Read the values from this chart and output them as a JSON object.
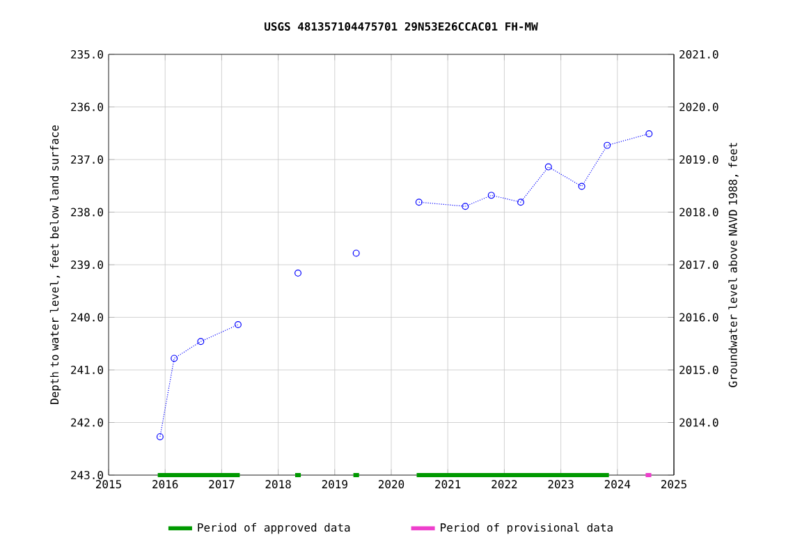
{
  "chart_data": {
    "type": "line",
    "title": "USGS 481357104475701 29N53E26CCAC01 FH-MW",
    "ylabel": "Depth to water level, feet below land surface",
    "y2label": "Groundwater level above NAVD 1988, feet",
    "series": [
      {
        "color": "#0000ff",
        "x": [
          2015.91,
          2016.16,
          2016.63,
          2017.29
        ],
        "values": [
          242.27,
          240.78,
          240.46,
          240.14
        ]
      },
      {
        "color": "#0000ff",
        "x": [
          2018.35
        ],
        "values": [
          239.16
        ]
      },
      {
        "color": "#0000ff",
        "x": [
          2019.38
        ],
        "values": [
          238.78
        ]
      },
      {
        "color": "#0000ff",
        "x": [
          2020.49,
          2021.31,
          2021.77,
          2022.29,
          2022.78,
          2023.37,
          2023.82,
          2024.56
        ],
        "values": [
          237.81,
          237.89,
          237.68,
          237.81,
          237.14,
          237.51,
          236.73,
          236.51
        ]
      },
      {
        "name": "Period of approved data",
        "color": "#009900",
        "marker": "none",
        "line_style": "solid",
        "x": [
          2015.87,
          2017.32
        ],
        "values": [
          243,
          243
        ]
      },
      {
        "color": "#009900",
        "marker": "none",
        "line_style": "solid",
        "x": [
          2018.3,
          2018.4
        ],
        "values": [
          243,
          243
        ]
      },
      {
        "color": "#009900",
        "marker": "none",
        "line_style": "solid",
        "x": [
          2019.33,
          2019.43
        ],
        "values": [
          243,
          243
        ]
      },
      {
        "color": "#009900",
        "marker": "none",
        "line_style": "solid",
        "x": [
          2020.45,
          2023.85
        ],
        "values": [
          243,
          243
        ]
      },
      {
        "name": "Period of provisional data",
        "color": "#ee3fcc",
        "marker": "none",
        "line_style": "solid",
        "x": [
          2024.5,
          2024.6
        ],
        "values": [
          243,
          243
        ]
      }
    ],
    "xlim": [
      2015,
      2025
    ],
    "xticks": [
      2015,
      2016,
      2017,
      2018,
      2019,
      2020,
      2021,
      2022,
      2023,
      2024,
      2025
    ],
    "ylim": [
      243,
      235
    ],
    "yticks": [
      {
        "value": 235,
        "label": "235.0"
      },
      {
        "value": 236,
        "label": "236.0"
      },
      {
        "value": 237,
        "label": "237.0"
      },
      {
        "value": 238,
        "label": "238.0"
      },
      {
        "value": 239,
        "label": "239.0"
      },
      {
        "value": 240,
        "label": "240.0"
      },
      {
        "value": 241,
        "label": "241.0"
      },
      {
        "value": 242,
        "label": "242.0"
      },
      {
        "value": 243,
        "label": "243.0"
      }
    ],
    "y2lim": [
      2013,
      2021
    ],
    "y2ticks": [
      {
        "value": 2014,
        "label": "2014.0"
      },
      {
        "value": 2015,
        "label": "2015.0"
      },
      {
        "value": 2016,
        "label": "2016.0"
      },
      {
        "value": 2017,
        "label": "2017.0"
      },
      {
        "value": 2018,
        "label": "2018.0"
      },
      {
        "value": 2019,
        "label": "2019.0"
      },
      {
        "value": 2020,
        "label": "2020.0"
      },
      {
        "value": 2021,
        "label": "2021.0"
      }
    ],
    "grid": true,
    "legend": "bottom",
    "marker": "circle",
    "line_style": "dotted"
  }
}
